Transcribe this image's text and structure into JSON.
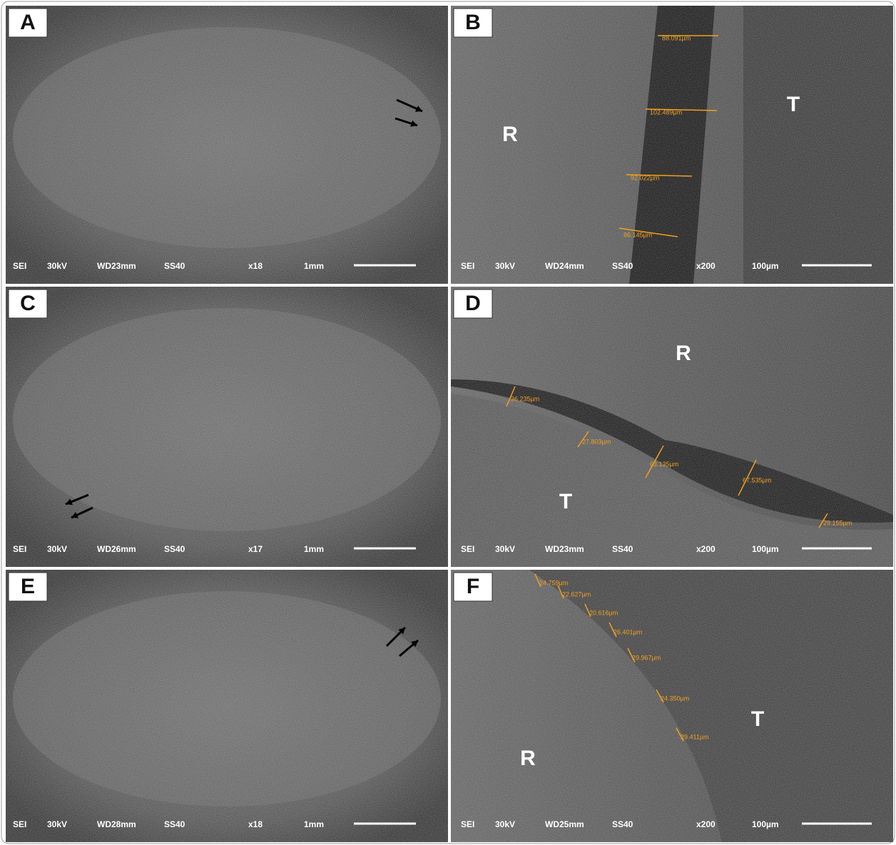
{
  "panels": [
    {
      "label": "A",
      "info": [
        "SEI",
        "30kV",
        "WD23mm",
        "SS40",
        "x18",
        "1mm"
      ],
      "regions": [],
      "measurements": []
    },
    {
      "label": "B",
      "info": [
        "SEI",
        "30kV",
        "WD24mm",
        "SS40",
        "x200",
        "100µm"
      ],
      "regions": [
        "R",
        "T"
      ],
      "measurements": [
        "88.091µm",
        "102.489µm",
        "92.022µm",
        "86.145µm"
      ]
    },
    {
      "label": "C",
      "info": [
        "SEI",
        "30kV",
        "WD26mm",
        "SS40",
        "x17",
        "1mm"
      ],
      "regions": [],
      "measurements": []
    },
    {
      "label": "D",
      "info": [
        "SEI",
        "30kV",
        "WD23mm",
        "SS40",
        "x200",
        "100µm"
      ],
      "regions": [
        "R",
        "T"
      ],
      "measurements": [
        "36.235µm",
        "27.803µm",
        "63.135µm",
        "67.535µm",
        "29.155µm"
      ]
    },
    {
      "label": "E",
      "info": [
        "SEI",
        "30kV",
        "WD28mm",
        "SS40",
        "x18",
        "1mm"
      ],
      "regions": [],
      "measurements": []
    },
    {
      "label": "F",
      "info": [
        "SEI",
        "30kV",
        "WD25mm",
        "SS40",
        "x200",
        "100µm"
      ],
      "regions": [
        "R",
        "T"
      ],
      "measurements": [
        "24.759µm",
        "22.627µm",
        "20.616µm",
        "26.401µm",
        "29.967µm",
        "24.350µm",
        "29.411µm"
      ]
    }
  ]
}
